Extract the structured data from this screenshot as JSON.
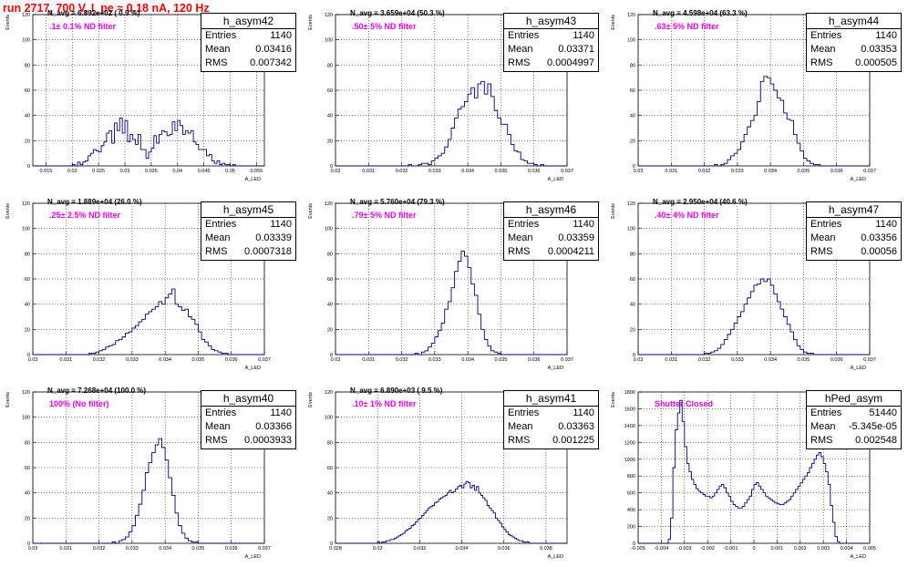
{
  "title": "run 2717,   700 V, I_pe ≈ 0.18 nA, 120 Hz",
  "colors": {
    "title": "#ff0000",
    "line": "#000080",
    "annotation": "#ee00ee",
    "grid": "#000000"
  },
  "chart_data": [
    {
      "type": "histogram",
      "name": "h_asym42",
      "navg": "N_avg = 6.892e+02 ( 0.9 %)",
      "filter": ".1± 0.1% ND filter",
      "stats": {
        "entries": "1140",
        "mean": "0.03416",
        "rms": "0.007342"
      },
      "xlabel": "A_LED",
      "ylabel": "Events",
      "xlim": [
        0.0125,
        0.0565
      ],
      "ylim": [
        0,
        120
      ],
      "xticks": [
        0.015,
        0.02,
        0.025,
        0.03,
        0.035,
        0.04,
        0.045,
        0.05,
        0.055
      ],
      "xtick_labels": [
        "0.015",
        "0.02",
        "0.025",
        "0.03",
        "0.035",
        "0.04",
        "0.045",
        "0.05",
        "0.055"
      ],
      "yticks": [
        0,
        20,
        40,
        60,
        80,
        100,
        120
      ],
      "bin_start": 0.0125,
      "bin_width": 0.0005,
      "values": [
        0,
        0,
        0,
        0,
        0,
        0,
        0,
        0,
        0,
        0,
        0,
        0,
        0,
        0,
        0,
        1,
        0,
        3,
        1,
        3,
        4,
        8,
        10,
        13,
        12,
        11,
        16,
        19,
        26,
        28,
        18,
        34,
        28,
        38,
        26,
        36,
        19,
        25,
        21,
        17,
        25,
        13,
        13,
        6,
        11,
        14,
        24,
        18,
        25,
        28,
        27,
        24,
        25,
        35,
        28,
        36,
        32,
        25,
        28,
        26,
        28,
        19,
        17,
        13,
        13,
        13,
        8,
        9,
        4,
        2,
        4,
        1,
        2,
        1,
        1,
        0,
        1,
        0,
        0,
        0,
        0,
        0,
        0,
        0,
        0,
        0,
        0,
        0
      ]
    },
    {
      "type": "histogram",
      "name": "h_asym43",
      "navg": "N_avg = 3.659e+04 (50.3 %)",
      "filter": ".50± 5% ND filter",
      "stats": {
        "entries": "1140",
        "mean": "0.03371",
        "rms": "0.0004997"
      },
      "xlabel": "A_LED",
      "ylabel": "Events",
      "xlim": [
        0.03,
        0.037
      ],
      "ylim": [
        0,
        120
      ],
      "xticks": [
        0.03,
        0.031,
        0.032,
        0.033,
        0.034,
        0.035,
        0.036,
        0.037
      ],
      "xtick_labels": [
        "0.03",
        "0.031",
        "0.032",
        "0.033",
        "0.034",
        "0.035",
        "0.036",
        "0.037"
      ],
      "yticks": [
        0,
        20,
        40,
        60,
        80,
        100,
        120
      ],
      "bin_start": 0.03,
      "bin_width": 0.0001,
      "values": [
        0,
        0,
        0,
        0,
        0,
        0,
        0,
        0,
        0,
        0,
        0,
        0,
        0,
        0,
        0,
        0,
        0,
        0,
        0,
        0,
        0,
        0,
        1,
        0,
        0,
        1,
        2,
        2,
        1,
        4,
        6,
        8,
        10,
        15,
        21,
        30,
        38,
        45,
        47,
        51,
        57,
        62,
        54,
        65,
        67,
        57,
        65,
        55,
        44,
        38,
        33,
        33,
        25,
        17,
        12,
        11,
        5,
        4,
        2,
        2,
        1,
        0,
        1,
        0,
        0,
        0,
        0,
        0,
        0,
        0
      ]
    },
    {
      "type": "histogram",
      "name": "h_asym44",
      "navg": "N_avg = 4.598e+04 (63.3 %)",
      "filter": ".63± 5% ND filter",
      "stats": {
        "entries": "1140",
        "mean": "0.03353",
        "rms": "0.000505"
      },
      "xlabel": "A_LED",
      "ylabel": "Events",
      "xlim": [
        0.03,
        0.037
      ],
      "ylim": [
        0,
        120
      ],
      "xticks": [
        0.03,
        0.031,
        0.032,
        0.033,
        0.034,
        0.035,
        0.036,
        0.037
      ],
      "xtick_labels": [
        "0.03",
        "0.031",
        "0.032",
        "0.033",
        "0.034",
        "0.035",
        "0.036",
        "0.037"
      ],
      "yticks": [
        0,
        20,
        40,
        60,
        80,
        100,
        120
      ],
      "bin_start": 0.03,
      "bin_width": 0.0001,
      "values": [
        0,
        0,
        0,
        0,
        0,
        0,
        0,
        0,
        0,
        0,
        0,
        0,
        0,
        0,
        0,
        0,
        0,
        0,
        0,
        0,
        0,
        0,
        0,
        1,
        0,
        1,
        2,
        5,
        8,
        10,
        13,
        19,
        25,
        31,
        36,
        40,
        51,
        67,
        71,
        70,
        65,
        60,
        54,
        52,
        42,
        37,
        36,
        25,
        18,
        12,
        6,
        4,
        2,
        1,
        1,
        0,
        0,
        0,
        0,
        0,
        0,
        0,
        0,
        0,
        0,
        0,
        0,
        0,
        0,
        0
      ]
    },
    {
      "type": "histogram",
      "name": "h_asym45",
      "navg": "N_avg = 1.889e+04 (26.0 %)",
      "filter": ".25± 2.5% ND filter",
      "stats": {
        "entries": "1140",
        "mean": "0.03339",
        "rms": "0.0007318"
      },
      "xlabel": "A_LED",
      "ylabel": "Events",
      "xlim": [
        0.03,
        0.037
      ],
      "ylim": [
        0,
        120
      ],
      "xticks": [
        0.03,
        0.031,
        0.032,
        0.033,
        0.034,
        0.035,
        0.036,
        0.037
      ],
      "xtick_labels": [
        "0.03",
        "0.031",
        "0.032",
        "0.033",
        "0.034",
        "0.035",
        "0.036",
        "0.037"
      ],
      "yticks": [
        0,
        20,
        40,
        60,
        80,
        100,
        120
      ],
      "bin_start": 0.03,
      "bin_width": 0.0001,
      "values": [
        0,
        0,
        0,
        0,
        0,
        0,
        0,
        0,
        0,
        0,
        0,
        0,
        0,
        0,
        0,
        0,
        0,
        1,
        1,
        2,
        3,
        4,
        6,
        7,
        8,
        11,
        12,
        14,
        17,
        18,
        21,
        23,
        26,
        28,
        32,
        34,
        36,
        38,
        42,
        40,
        45,
        48,
        52,
        40,
        38,
        35,
        36,
        30,
        28,
        24,
        18,
        12,
        10,
        7,
        4,
        3,
        2,
        1,
        1,
        0,
        0,
        0,
        0,
        0,
        0,
        0,
        0,
        0,
        0,
        0
      ]
    },
    {
      "type": "histogram",
      "name": "h_asym46",
      "navg": "N_avg = 5.760e+04 (79.3 %)",
      "filter": ".79± 5% ND filter",
      "stats": {
        "entries": "1140",
        "mean": "0.03359",
        "rms": "0.0004211"
      },
      "xlabel": "A_LED",
      "ylabel": "Events",
      "xlim": [
        0.03,
        0.037
      ],
      "ylim": [
        0,
        120
      ],
      "xticks": [
        0.03,
        0.031,
        0.032,
        0.033,
        0.034,
        0.035,
        0.036,
        0.037
      ],
      "xtick_labels": [
        "0.03",
        "0.031",
        "0.032",
        "0.033",
        "0.034",
        "0.035",
        "0.036",
        "0.037"
      ],
      "yticks": [
        0,
        20,
        40,
        60,
        80,
        100,
        120
      ],
      "bin_start": 0.03,
      "bin_width": 0.0001,
      "values": [
        0,
        0,
        0,
        0,
        0,
        0,
        0,
        0,
        0,
        0,
        0,
        0,
        0,
        0,
        0,
        0,
        0,
        0,
        0,
        0,
        0,
        0,
        0,
        0,
        1,
        0,
        2,
        3,
        6,
        9,
        14,
        19,
        25,
        36,
        42,
        53,
        66,
        74,
        82,
        78,
        69,
        56,
        47,
        32,
        20,
        12,
        7,
        3,
        2,
        1,
        0,
        0,
        0,
        0,
        0,
        0,
        0,
        0,
        0,
        0,
        0,
        0,
        0,
        0,
        0,
        0,
        0,
        0,
        0,
        0
      ]
    },
    {
      "type": "histogram",
      "name": "h_asym47",
      "navg": "N_avg = 2.950e+04 (40.6 %)",
      "filter": ".40± 4% ND filter",
      "stats": {
        "entries": "1140",
        "mean": "0.03356",
        "rms": "0.00056"
      },
      "xlabel": "A_LED",
      "ylabel": "Events",
      "xlim": [
        0.03,
        0.037
      ],
      "ylim": [
        0,
        120
      ],
      "xticks": [
        0.03,
        0.031,
        0.032,
        0.033,
        0.034,
        0.035,
        0.036,
        0.037
      ],
      "xtick_labels": [
        "0.03",
        "0.031",
        "0.032",
        "0.033",
        "0.034",
        "0.035",
        "0.036",
        "0.037"
      ],
      "yticks": [
        0,
        20,
        40,
        60,
        80,
        100,
        120
      ],
      "bin_start": 0.03,
      "bin_width": 0.0001,
      "values": [
        0,
        0,
        0,
        0,
        0,
        0,
        0,
        0,
        0,
        0,
        0,
        0,
        0,
        0,
        0,
        0,
        0,
        0,
        0,
        0,
        1,
        1,
        2,
        3,
        5,
        8,
        12,
        16,
        20,
        25,
        30,
        34,
        40,
        45,
        50,
        55,
        56,
        60,
        58,
        60,
        55,
        48,
        42,
        36,
        30,
        24,
        18,
        12,
        7,
        4,
        2,
        1,
        1,
        0,
        0,
        0,
        0,
        0,
        0,
        0,
        0,
        0,
        0,
        0,
        0,
        0,
        0,
        0,
        0,
        0
      ]
    },
    {
      "type": "histogram",
      "name": "h_asym40",
      "navg": "N_avg = 7.268e+04 (100.0 %)",
      "filter": "100% (No filter)",
      "stats": {
        "entries": "1140",
        "mean": "0.03366",
        "rms": "0.0003933"
      },
      "xlabel": "A_LED",
      "ylabel": "Events",
      "xlim": [
        0.03,
        0.037
      ],
      "ylim": [
        0,
        120
      ],
      "xticks": [
        0.03,
        0.031,
        0.032,
        0.033,
        0.034,
        0.035,
        0.036,
        0.037
      ],
      "xtick_labels": [
        "0.03",
        "0.031",
        "0.032",
        "0.033",
        "0.034",
        "0.035",
        "0.036",
        "0.037"
      ],
      "yticks": [
        0,
        20,
        40,
        60,
        80,
        100,
        120
      ],
      "bin_start": 0.03,
      "bin_width": 0.0001,
      "values": [
        0,
        0,
        0,
        0,
        0,
        0,
        0,
        0,
        0,
        0,
        0,
        0,
        0,
        0,
        0,
        0,
        0,
        0,
        0,
        0,
        0,
        0,
        0,
        0,
        1,
        0,
        2,
        3,
        5,
        9,
        14,
        22,
        31,
        42,
        56,
        64,
        72,
        78,
        83,
        76,
        66,
        52,
        38,
        24,
        14,
        8,
        4,
        2,
        1,
        1,
        0,
        0,
        0,
        0,
        0,
        0,
        0,
        0,
        0,
        0,
        0,
        0,
        0,
        0,
        0,
        0,
        0,
        0,
        0,
        0
      ]
    },
    {
      "type": "histogram",
      "name": "h_asym41",
      "navg": "N_avg = 6.890e+03 ( 9.5 %)",
      "filter": ".10± 1% ND filter",
      "stats": {
        "entries": "1140",
        "mean": "0.03363",
        "rms": "0.001225"
      },
      "xlabel": "A_LED",
      "ylabel": "Events",
      "xlim": [
        0.028,
        0.039
      ],
      "ylim": [
        0,
        120
      ],
      "xticks": [
        0.028,
        0.03,
        0.032,
        0.034,
        0.036,
        0.038
      ],
      "xtick_labels": [
        "0.028",
        "0.03",
        "0.032",
        "0.034",
        "0.036",
        "0.038"
      ],
      "yticks": [
        0,
        20,
        40,
        60,
        80,
        100,
        120
      ],
      "bin_start": 0.028,
      "bin_width": 0.0001,
      "values": [
        0,
        0,
        0,
        0,
        0,
        0,
        0,
        0,
        0,
        0,
        0,
        0,
        0,
        0,
        0,
        0,
        0,
        0,
        0,
        0,
        1,
        0,
        1,
        1,
        2,
        2,
        3,
        3,
        4,
        5,
        6,
        7,
        8,
        10,
        11,
        12,
        14,
        15,
        17,
        19,
        20,
        22,
        24,
        26,
        28,
        29,
        30,
        32,
        33,
        35,
        36,
        37,
        38,
        40,
        42,
        40,
        41,
        43,
        45,
        46,
        44,
        47,
        49,
        48,
        44,
        46,
        42,
        45,
        40,
        38,
        36,
        34,
        30,
        28,
        26,
        24,
        20,
        18,
        16,
        13,
        11,
        9,
        7,
        6,
        5,
        4,
        3,
        2,
        2,
        1,
        1,
        1,
        0,
        0,
        0,
        0,
        0,
        0,
        0,
        0,
        0,
        0,
        0,
        0,
        0,
        0,
        0,
        0,
        0,
        0,
        0
      ]
    },
    {
      "type": "histogram",
      "name": "hPed_asym",
      "navg": "",
      "filter": "Shutter Closed",
      "stats": {
        "entries": "51440",
        "mean": "-5.345e-05",
        "rms": "0.002548"
      },
      "xlabel": "A_LED",
      "ylabel": "Events",
      "xlim": [
        -0.005,
        0.005
      ],
      "ylim": [
        0,
        1800
      ],
      "xticks": [
        -0.005,
        -0.004,
        -0.003,
        -0.002,
        -0.001,
        0,
        0.001,
        0.002,
        0.003,
        0.004,
        0.005
      ],
      "xtick_labels": [
        "-0.005",
        "-0.004",
        "-0.003",
        "-0.002",
        "-0.001",
        "0",
        "0.001",
        "0.002",
        "0.003",
        "0.004",
        "0.005"
      ],
      "yticks": [
        0,
        200,
        400,
        600,
        800,
        1000,
        1200,
        1400,
        1600,
        1800
      ],
      "bin_start": -0.005,
      "bin_width": 0.0001,
      "values": [
        0,
        0,
        0,
        0,
        0,
        0,
        0,
        0,
        0,
        0,
        0,
        0,
        0,
        50,
        300,
        900,
        1350,
        1550,
        1700,
        1450,
        1150,
        950,
        850,
        760,
        700,
        650,
        620,
        600,
        580,
        560,
        560,
        540,
        560,
        600,
        640,
        680,
        700,
        660,
        600,
        560,
        500,
        460,
        440,
        420,
        420,
        440,
        480,
        520,
        560,
        640,
        700,
        720,
        680,
        640,
        600,
        560,
        540,
        520,
        500,
        480,
        470,
        460,
        460,
        480,
        500,
        520,
        560,
        600,
        640,
        680,
        720,
        760,
        800,
        840,
        900,
        950,
        1000,
        1050,
        1080,
        1030,
        950,
        850,
        700,
        450,
        250,
        80,
        20,
        0,
        0,
        0,
        0,
        0,
        0,
        0,
        0,
        0,
        0,
        0,
        0,
        0
      ]
    }
  ]
}
